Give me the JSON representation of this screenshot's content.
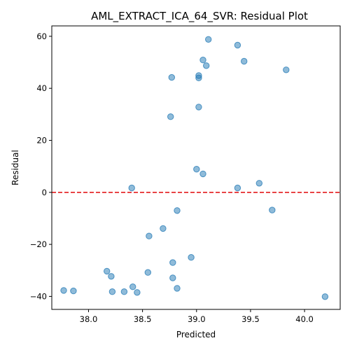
{
  "chart_data": {
    "type": "scatter",
    "title": "AML_EXTRACT_ICA_64_SVR: Residual Plot",
    "xlabel": "Predicted",
    "ylabel": "Residual",
    "xlim": [
      37.66,
      40.33
    ],
    "ylim": [
      -45,
      64
    ],
    "xticks": [
      38.0,
      38.5,
      39.0,
      39.5,
      40.0
    ],
    "xtick_labels": [
      "38.0",
      "38.5",
      "39.0",
      "39.5",
      "40.0"
    ],
    "yticks": [
      -40,
      -20,
      0,
      20,
      40,
      60
    ],
    "ytick_labels": [
      "−40",
      "−20",
      "0",
      "20",
      "40",
      "60"
    ],
    "grid": false,
    "reference_line": {
      "y": 0,
      "color": "#e31a1c",
      "style": "dashed"
    },
    "point_color": "#1f77b4",
    "points": [
      {
        "x": 39.11,
        "y": 58.8
      },
      {
        "x": 39.38,
        "y": 56.6
      },
      {
        "x": 39.06,
        "y": 50.9
      },
      {
        "x": 39.44,
        "y": 50.4
      },
      {
        "x": 39.09,
        "y": 48.7
      },
      {
        "x": 39.83,
        "y": 47.1
      },
      {
        "x": 38.77,
        "y": 44.2
      },
      {
        "x": 39.02,
        "y": 44.9
      },
      {
        "x": 39.02,
        "y": 44.0
      },
      {
        "x": 39.02,
        "y": 32.8
      },
      {
        "x": 38.76,
        "y": 29.1
      },
      {
        "x": 39.0,
        "y": 8.9
      },
      {
        "x": 39.06,
        "y": 7.1
      },
      {
        "x": 39.58,
        "y": 3.5
      },
      {
        "x": 38.4,
        "y": 1.7
      },
      {
        "x": 39.38,
        "y": 1.7
      },
      {
        "x": 38.82,
        "y": -7.0
      },
      {
        "x": 39.7,
        "y": -6.8
      },
      {
        "x": 38.69,
        "y": -13.9
      },
      {
        "x": 38.56,
        "y": -16.8
      },
      {
        "x": 38.95,
        "y": -25.0
      },
      {
        "x": 38.78,
        "y": -27.0
      },
      {
        "x": 38.17,
        "y": -30.3
      },
      {
        "x": 38.55,
        "y": -30.8
      },
      {
        "x": 38.21,
        "y": -32.3
      },
      {
        "x": 38.78,
        "y": -32.9
      },
      {
        "x": 38.41,
        "y": -36.3
      },
      {
        "x": 38.82,
        "y": -36.9
      },
      {
        "x": 37.77,
        "y": -37.7
      },
      {
        "x": 37.86,
        "y": -37.9
      },
      {
        "x": 38.22,
        "y": -38.2
      },
      {
        "x": 38.33,
        "y": -38.2
      },
      {
        "x": 38.45,
        "y": -38.5
      },
      {
        "x": 40.19,
        "y": -40.1
      }
    ]
  }
}
